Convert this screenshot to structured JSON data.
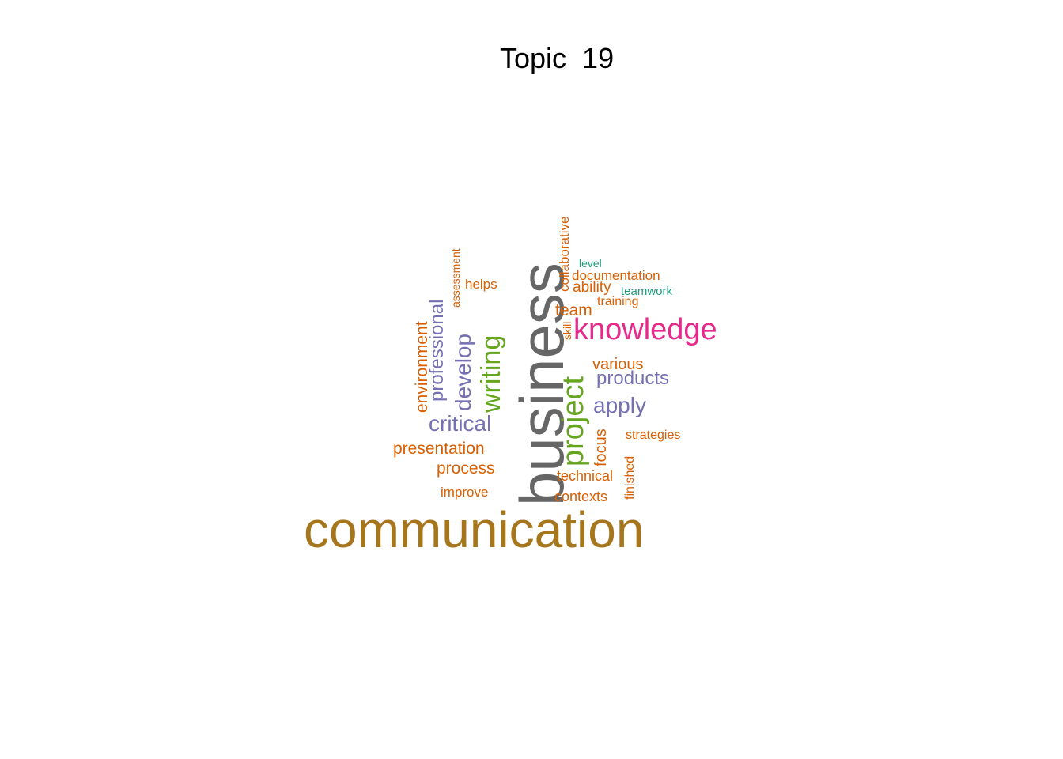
{
  "title": "Topic  19",
  "palette": {
    "gold": "#A6761D",
    "gray": "#666666",
    "magenta": "#E7298A",
    "green": "#66A61E",
    "purple": "#7570B3",
    "orange": "#D95F02",
    "teal": "#1B9E77"
  },
  "words": [
    {
      "text": "communication",
      "color": "gold"
    },
    {
      "text": "business",
      "color": "gray"
    },
    {
      "text": "knowledge",
      "color": "magenta"
    },
    {
      "text": "project",
      "color": "green"
    },
    {
      "text": "writing",
      "color": "green"
    },
    {
      "text": "critical",
      "color": "purple"
    },
    {
      "text": "develop",
      "color": "purple"
    },
    {
      "text": "professional",
      "color": "purple"
    },
    {
      "text": "apply",
      "color": "purple"
    },
    {
      "text": "products",
      "color": "purple"
    },
    {
      "text": "environment",
      "color": "orange"
    },
    {
      "text": "presentation",
      "color": "orange"
    },
    {
      "text": "process",
      "color": "orange"
    },
    {
      "text": "improve",
      "color": "orange"
    },
    {
      "text": "assessment",
      "color": "orange"
    },
    {
      "text": "helps",
      "color": "orange"
    },
    {
      "text": "collaborative",
      "color": "orange"
    },
    {
      "text": "level",
      "color": "teal"
    },
    {
      "text": "documentation",
      "color": "orange"
    },
    {
      "text": "ability",
      "color": "orange"
    },
    {
      "text": "teamwork",
      "color": "teal"
    },
    {
      "text": "training",
      "color": "orange"
    },
    {
      "text": "team",
      "color": "orange"
    },
    {
      "text": "skill",
      "color": "orange"
    },
    {
      "text": "various",
      "color": "orange"
    },
    {
      "text": "strategies",
      "color": "orange"
    },
    {
      "text": "focus",
      "color": "orange"
    },
    {
      "text": "finished",
      "color": "orange"
    },
    {
      "text": "technical",
      "color": "orange"
    },
    {
      "text": "contexts",
      "color": "orange"
    }
  ]
}
